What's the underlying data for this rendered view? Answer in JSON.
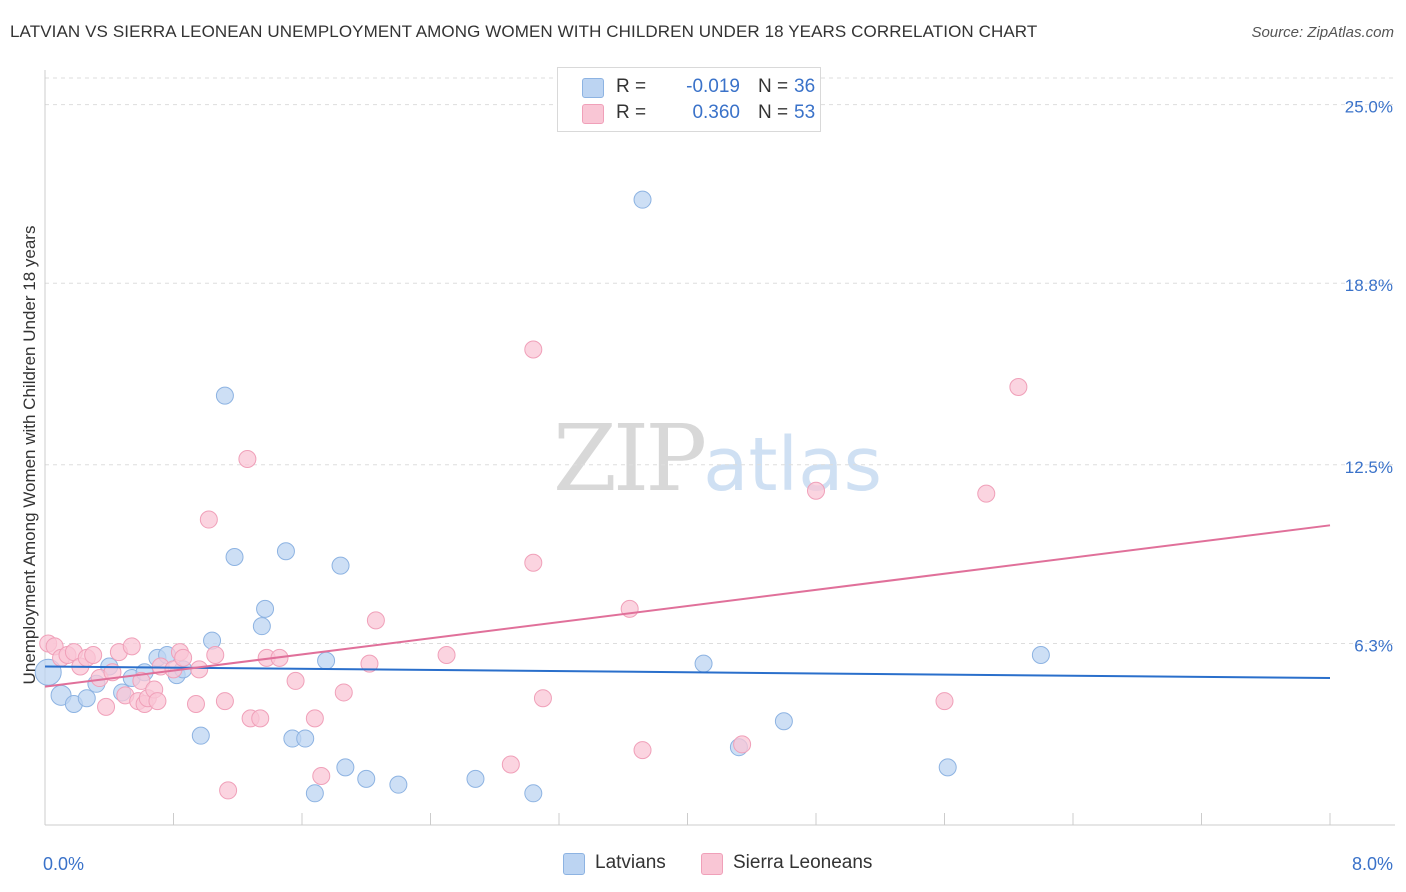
{
  "title": "LATVIAN VS SIERRA LEONEAN UNEMPLOYMENT AMONG WOMEN WITH CHILDREN UNDER 18 YEARS CORRELATION CHART",
  "source": "Source: ZipAtlas.com",
  "watermark": {
    "zip": "ZIP",
    "atlas": "atlas"
  },
  "legend": {
    "r_label": "R =",
    "n_label": "N =",
    "latvians": {
      "r": "-0.019",
      "n": "36"
    },
    "sierra": {
      "r": "0.360",
      "n": "53"
    }
  },
  "colors": {
    "blue_fill": "#bcd4f2",
    "blue_stroke": "#8db3e2",
    "blue_line": "#2a6fcb",
    "pink_fill": "#f9c6d5",
    "pink_stroke": "#f0a0b9",
    "pink_line": "#e0709a",
    "tick_label": "#3a72c9",
    "grid": "#dddddd"
  },
  "chart_data": {
    "type": "scatter",
    "title": "LATVIAN VS SIERRA LEONEAN UNEMPLOYMENT AMONG WOMEN WITH CHILDREN UNDER 18 YEARS CORRELATION CHART",
    "xlabel": "",
    "ylabel": "Unemployment Among Women with Children Under 18 years",
    "xlim": [
      0,
      8
    ],
    "ylim": [
      0,
      26.2
    ],
    "x_tick_labels": [
      "0.0%",
      "8.0%"
    ],
    "y_ticks": [
      6.3,
      12.5,
      18.8,
      25.0
    ],
    "y_tick_labels": [
      "6.3%",
      "12.5%",
      "18.8%",
      "25.0%"
    ],
    "series": [
      {
        "name": "Latvians",
        "r": -0.019,
        "n": 36,
        "trend": {
          "x0": 0.0,
          "y0": 5.5,
          "x1": 8.0,
          "y1": 5.1
        },
        "points": [
          [
            0.02,
            5.3
          ],
          [
            0.1,
            4.5
          ],
          [
            0.18,
            4.2
          ],
          [
            0.26,
            4.4
          ],
          [
            0.32,
            4.9
          ],
          [
            0.4,
            5.5
          ],
          [
            0.48,
            4.6
          ],
          [
            0.54,
            5.1
          ],
          [
            0.62,
            5.3
          ],
          [
            0.7,
            5.8
          ],
          [
            0.76,
            5.9
          ],
          [
            0.82,
            5.2
          ],
          [
            0.86,
            5.4
          ],
          [
            0.97,
            3.1
          ],
          [
            1.04,
            6.4
          ],
          [
            1.12,
            14.9
          ],
          [
            1.18,
            9.3
          ],
          [
            1.35,
            6.9
          ],
          [
            1.37,
            7.5
          ],
          [
            1.5,
            9.5
          ],
          [
            1.54,
            3.0
          ],
          [
            1.62,
            3.0
          ],
          [
            1.68,
            1.1
          ],
          [
            1.75,
            5.7
          ],
          [
            1.84,
            9.0
          ],
          [
            1.87,
            2.0
          ],
          [
            2.0,
            1.6
          ],
          [
            2.2,
            1.4
          ],
          [
            2.68,
            1.6
          ],
          [
            3.04,
            1.1
          ],
          [
            3.72,
            21.7
          ],
          [
            4.1,
            5.6
          ],
          [
            4.32,
            2.7
          ],
          [
            4.6,
            3.6
          ],
          [
            6.2,
            5.9
          ],
          [
            5.62,
            2.0
          ]
        ]
      },
      {
        "name": "Sierra Leoneans",
        "r": 0.36,
        "n": 53,
        "trend": {
          "x0": 0.0,
          "y0": 4.8,
          "x1": 8.0,
          "y1": 10.4
        },
        "points": [
          [
            0.02,
            6.3
          ],
          [
            0.06,
            6.2
          ],
          [
            0.1,
            5.8
          ],
          [
            0.14,
            5.9
          ],
          [
            0.18,
            6.0
          ],
          [
            0.22,
            5.5
          ],
          [
            0.26,
            5.8
          ],
          [
            0.3,
            5.9
          ],
          [
            0.34,
            5.1
          ],
          [
            0.38,
            4.1
          ],
          [
            0.42,
            5.3
          ],
          [
            0.46,
            6.0
          ],
          [
            0.5,
            4.5
          ],
          [
            0.54,
            6.2
          ],
          [
            0.58,
            4.3
          ],
          [
            0.6,
            5.0
          ],
          [
            0.62,
            4.2
          ],
          [
            0.64,
            4.4
          ],
          [
            0.68,
            4.7
          ],
          [
            0.7,
            4.3
          ],
          [
            0.72,
            5.5
          ],
          [
            0.8,
            5.4
          ],
          [
            0.84,
            6.0
          ],
          [
            0.86,
            5.8
          ],
          [
            0.94,
            4.2
          ],
          [
            0.96,
            5.4
          ],
          [
            1.02,
            10.6
          ],
          [
            1.06,
            5.9
          ],
          [
            1.12,
            4.3
          ],
          [
            1.14,
            1.2
          ],
          [
            1.26,
            12.7
          ],
          [
            1.28,
            3.7
          ],
          [
            1.34,
            3.7
          ],
          [
            1.38,
            5.8
          ],
          [
            1.46,
            5.8
          ],
          [
            1.56,
            5.0
          ],
          [
            1.68,
            3.7
          ],
          [
            1.72,
            1.7
          ],
          [
            1.86,
            4.6
          ],
          [
            2.02,
            5.6
          ],
          [
            2.06,
            7.1
          ],
          [
            2.5,
            5.9
          ],
          [
            2.9,
            2.1
          ],
          [
            3.04,
            16.5
          ],
          [
            3.04,
            9.1
          ],
          [
            3.1,
            4.4
          ],
          [
            3.64,
            7.5
          ],
          [
            3.72,
            2.6
          ],
          [
            4.34,
            2.8
          ],
          [
            4.8,
            11.6
          ],
          [
            5.6,
            4.3
          ],
          [
            5.86,
            11.5
          ],
          [
            6.06,
            15.2
          ]
        ]
      }
    ]
  }
}
